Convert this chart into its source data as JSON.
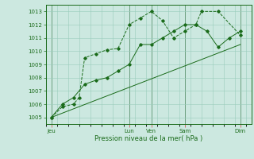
{
  "xlabel": "Pression niveau de la mer( hPa )",
  "ylabel": "",
  "bg_color": "#cce8e0",
  "line_color": "#1a6b1a",
  "grid_color": "#99ccbb",
  "tick_color": "#cc4444",
  "ylim": [
    1004.5,
    1013.5
  ],
  "yticks": [
    1005,
    1006,
    1007,
    1008,
    1009,
    1010,
    1011,
    1012,
    1013
  ],
  "day_labels": [
    "Jeu",
    "Lun",
    "Ven",
    "Sam",
    "Dim"
  ],
  "day_positions": [
    0.5,
    7.5,
    9.5,
    12.5,
    17.5
  ],
  "vline_positions": [
    0.5,
    7.5,
    9.5,
    12.5,
    17.5
  ],
  "xlim": [
    0,
    18.5
  ],
  "series1_x": [
    0.5,
    1.5,
    2.5,
    3.0,
    3.5,
    4.5,
    5.5,
    6.5,
    7.5,
    8.5,
    9.5,
    10.5,
    11.5,
    12.5,
    13.5,
    14.0,
    15.5,
    17.5
  ],
  "series1_y": [
    1005.0,
    1005.8,
    1006.0,
    1006.5,
    1009.5,
    1009.8,
    1010.1,
    1010.2,
    1012.0,
    1012.5,
    1013.0,
    1012.3,
    1011.0,
    1011.5,
    1012.0,
    1013.0,
    1013.0,
    1011.2
  ],
  "series2_x": [
    0.5,
    1.5,
    2.5,
    3.5,
    4.5,
    5.5,
    6.5,
    7.5,
    8.5,
    9.5,
    10.5,
    11.5,
    12.5,
    13.5,
    14.5,
    15.5,
    16.5,
    17.5
  ],
  "series2_y": [
    1005.0,
    1006.0,
    1006.5,
    1007.5,
    1007.8,
    1008.0,
    1008.5,
    1009.0,
    1010.5,
    1010.5,
    1011.0,
    1011.5,
    1012.0,
    1012.0,
    1011.5,
    1010.3,
    1011.0,
    1011.5
  ],
  "series3_x": [
    0.5,
    17.5
  ],
  "series3_y": [
    1005.0,
    1010.5
  ]
}
